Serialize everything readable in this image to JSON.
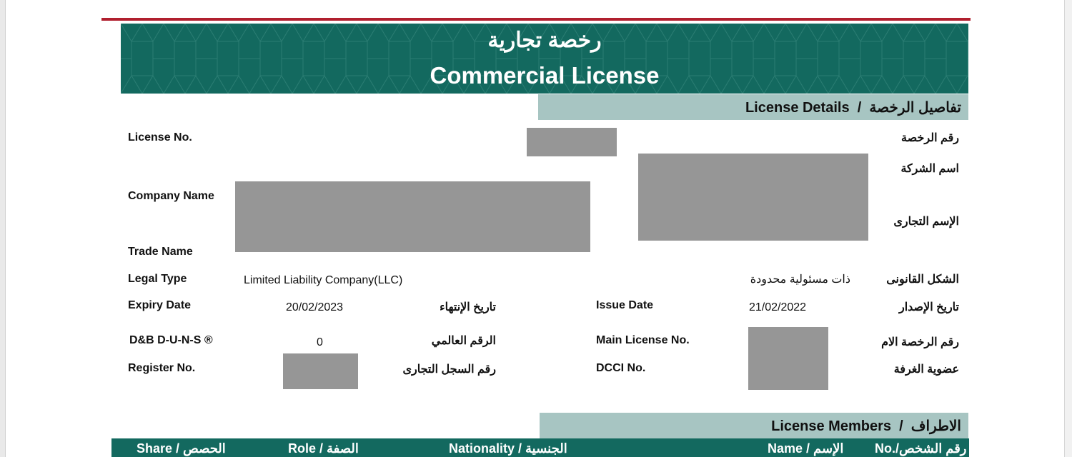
{
  "header": {
    "title_ar": "رخصة تجارية",
    "title_en": "Commercial License"
  },
  "license_details": {
    "section_title": "License Details  /  تفاصيل الرخصة",
    "fields": {
      "license_no": {
        "label_en": "License No.",
        "label_ar": "رقم الرخصة"
      },
      "company_name": {
        "label_en": "Company Name",
        "label_ar": "اسم الشركة"
      },
      "trade_name": {
        "label_en": "Trade Name",
        "label_ar": "الإسم التجارى"
      },
      "legal_type": {
        "label_en": "Legal Type",
        "label_ar": "الشكل القانونى",
        "value_en": "Limited Liability Company(LLC)",
        "value_ar": "ذات مسئولية محدودة"
      },
      "expiry_date": {
        "label_en": "Expiry Date",
        "label_ar": "تاريخ الإنتهاء",
        "value": "20/02/2023"
      },
      "issue_date": {
        "label_en": "Issue Date",
        "label_ar": "تاريخ الإصدار",
        "value": "21/02/2022"
      },
      "duns": {
        "label_en": "D&B D-U-N-S ®",
        "label_ar": "الرقم العالمي",
        "value": "0"
      },
      "main_license_no": {
        "label_en": "Main License No.",
        "label_ar": "رقم الرخصة الام"
      },
      "register_no": {
        "label_en": "Register No.",
        "label_ar": "رقم السجل التجارى"
      },
      "dcci_no": {
        "label_en": "DCCI No.",
        "label_ar": "عضوية الغرفة"
      }
    }
  },
  "license_members": {
    "section_title": "License Members  /  الاطراف",
    "columns": [
      "Share / الحصص",
      "Role / الصفة",
      "Nationality / الجنسية",
      "Name / الإسم",
      "No./رقم الشخص"
    ]
  },
  "colors": {
    "brand_teal": "#13695f",
    "section_bar": "#a7c5c2",
    "accent_red": "#b01f2e",
    "redaction": "#969696"
  }
}
